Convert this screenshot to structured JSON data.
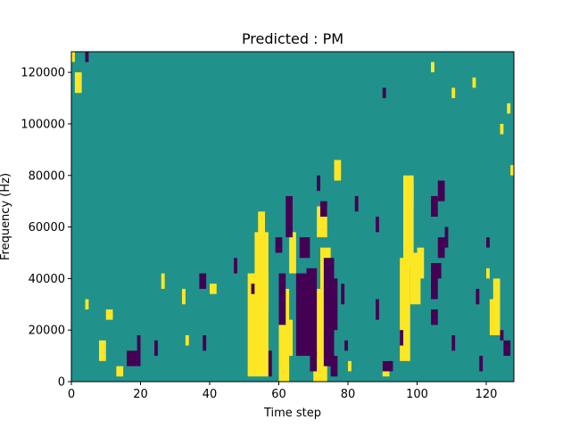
{
  "chart_data": {
    "type": "heatmap",
    "title": "Predicted : PM",
    "xlabel": "Time step",
    "ylabel": "Frequency (Hz)",
    "xlim": [
      0,
      128
    ],
    "ylim": [
      0,
      128000
    ],
    "x_ticks": [
      0,
      20,
      40,
      60,
      80,
      100,
      120
    ],
    "x_tick_labels": [
      "0",
      "20",
      "40",
      "60",
      "80",
      "100",
      "120"
    ],
    "y_ticks": [
      0,
      20000,
      40000,
      60000,
      80000,
      100000,
      120000
    ],
    "y_tick_labels": [
      "0",
      "20000",
      "40000",
      "60000",
      "80000",
      "100000",
      "120000"
    ],
    "grid": false,
    "colormap": "viridis",
    "value_levels": [
      -1,
      0,
      1
    ],
    "level_colors": [
      "#440154",
      "#21918c",
      "#fde725"
    ],
    "background_level": 0,
    "cells": {
      "high": [
        [
          0,
          124000,
          1,
          4000
        ],
        [
          1,
          112000,
          2,
          8000
        ],
        [
          4,
          28000,
          1,
          4000
        ],
        [
          8,
          8000,
          2,
          8000
        ],
        [
          10,
          24000,
          2,
          4000
        ],
        [
          13,
          2000,
          2,
          4000
        ],
        [
          26,
          36000,
          1,
          6000
        ],
        [
          32,
          30000,
          1,
          6000
        ],
        [
          33,
          14000,
          1,
          4000
        ],
        [
          40,
          34000,
          2,
          4000
        ],
        [
          51,
          2000,
          6,
          40000
        ],
        [
          53,
          28000,
          4,
          30000
        ],
        [
          54,
          54000,
          2,
          12000
        ],
        [
          60,
          0,
          3,
          36000
        ],
        [
          62,
          10000,
          2,
          14000
        ],
        [
          63,
          42000,
          2,
          16000
        ],
        [
          70,
          0,
          4,
          36000
        ],
        [
          71,
          56000,
          3,
          12000
        ],
        [
          72,
          36000,
          3,
          16000
        ],
        [
          76,
          78000,
          2,
          8000
        ],
        [
          95,
          8000,
          3,
          40000
        ],
        [
          96,
          44000,
          3,
          36000
        ],
        [
          98,
          30000,
          3,
          20000
        ],
        [
          100,
          40000,
          2,
          12000
        ],
        [
          121,
          18000,
          3,
          14000
        ],
        [
          122,
          30000,
          2,
          10000
        ],
        [
          120,
          40000,
          1,
          4000
        ],
        [
          124,
          96000,
          1,
          4000
        ],
        [
          126,
          104000,
          1,
          4000
        ],
        [
          127,
          80000,
          1,
          4000
        ],
        [
          110,
          110000,
          1,
          4000
        ],
        [
          116,
          114000,
          1,
          4000
        ],
        [
          104,
          120000,
          1,
          4000
        ],
        [
          97,
          68000,
          2,
          10000
        ],
        [
          80,
          4000,
          1,
          4000
        ],
        [
          90,
          2000,
          2,
          6000
        ]
      ],
      "low": [
        [
          4,
          124000,
          1,
          4000
        ],
        [
          16,
          6000,
          3,
          6000
        ],
        [
          19,
          6000,
          1,
          12000
        ],
        [
          24,
          10000,
          1,
          6000
        ],
        [
          37,
          36000,
          2,
          6000
        ],
        [
          38,
          12000,
          1,
          6000
        ],
        [
          47,
          42000,
          1,
          6000
        ],
        [
          52,
          34000,
          1,
          4000
        ],
        [
          57,
          2000,
          1,
          10000
        ],
        [
          59,
          50000,
          2,
          6000
        ],
        [
          60,
          22000,
          2,
          20000
        ],
        [
          62,
          56000,
          2,
          16000
        ],
        [
          65,
          10000,
          3,
          32000
        ],
        [
          66,
          48000,
          3,
          8000
        ],
        [
          68,
          10000,
          3,
          34000
        ],
        [
          69,
          4000,
          2,
          8000
        ],
        [
          73,
          6000,
          3,
          42000
        ],
        [
          74,
          20000,
          3,
          20000
        ],
        [
          75,
          2000,
          2,
          8000
        ],
        [
          78,
          30000,
          1,
          8000
        ],
        [
          79,
          12000,
          1,
          4000
        ],
        [
          88,
          24000,
          1,
          8000
        ],
        [
          90,
          4000,
          3,
          4000
        ],
        [
          104,
          32000,
          2,
          14000
        ],
        [
          104,
          22000,
          2,
          6000
        ],
        [
          105,
          40000,
          2,
          6000
        ],
        [
          106,
          48000,
          2,
          8000
        ],
        [
          104,
          64000,
          2,
          8000
        ],
        [
          106,
          70000,
          2,
          8000
        ],
        [
          108,
          52000,
          1,
          8000
        ],
        [
          110,
          12000,
          1,
          6000
        ],
        [
          120,
          52000,
          1,
          4000
        ],
        [
          118,
          4000,
          1,
          6000
        ],
        [
          117,
          30000,
          1,
          6000
        ],
        [
          124,
          16000,
          1,
          4000
        ],
        [
          125,
          10000,
          2,
          6000
        ],
        [
          90,
          110000,
          1,
          4000
        ],
        [
          88,
          58000,
          1,
          6000
        ],
        [
          82,
          66000,
          1,
          6000
        ],
        [
          71,
          74000,
          1,
          6000
        ],
        [
          72,
          64000,
          2,
          6000
        ],
        [
          95,
          14000,
          1,
          6000
        ]
      ]
    }
  }
}
